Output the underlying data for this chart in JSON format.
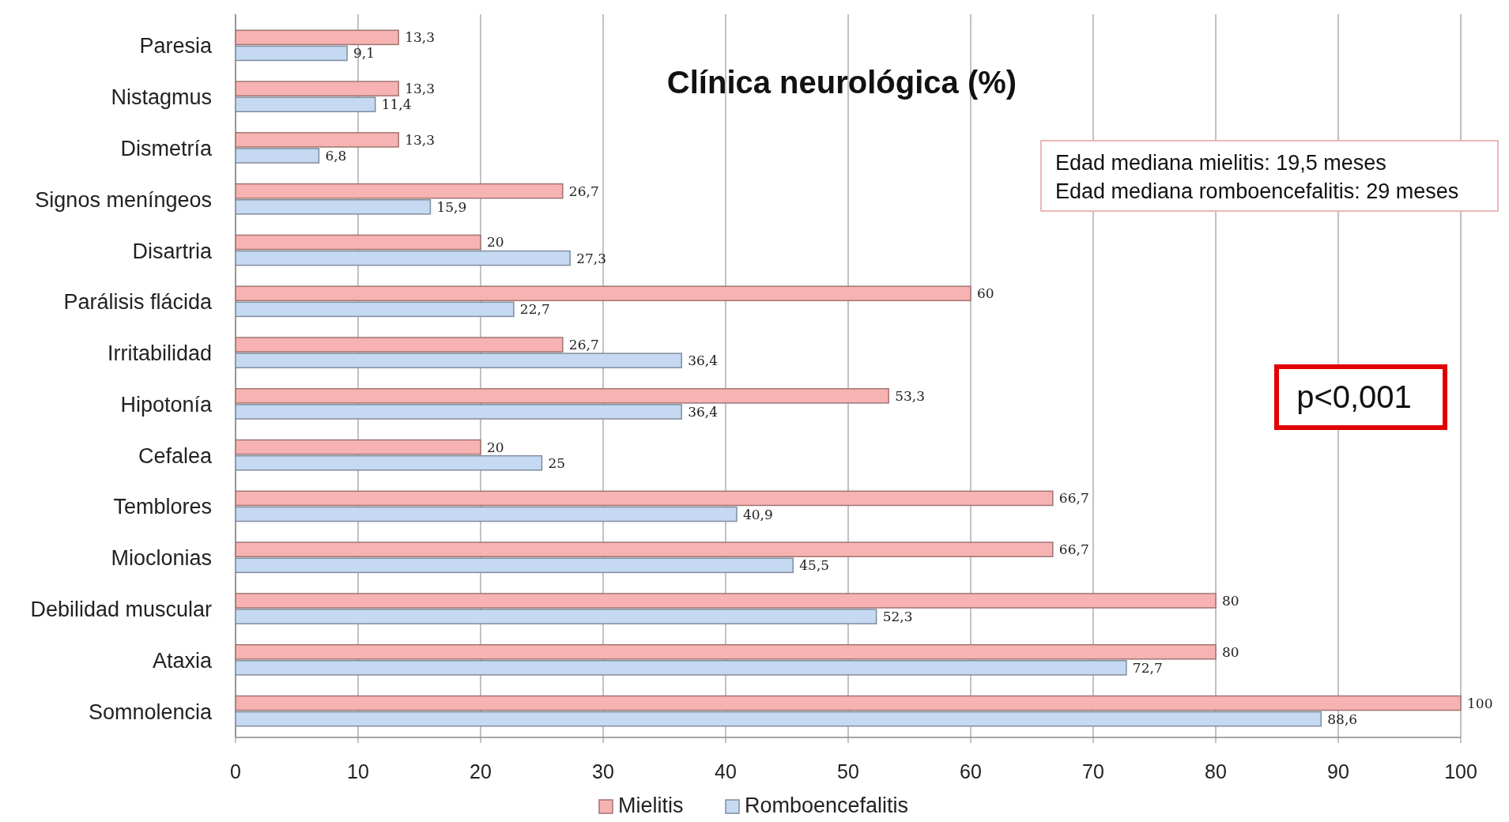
{
  "chart_data": {
    "type": "bar",
    "orientation": "horizontal",
    "title": "Clínica neurológica (%)",
    "categories": [
      "Paresia",
      "Nistagmus",
      "Dismetría",
      "Signos meníngeos",
      "Disartria",
      "Parálisis flácida",
      "Irritabilidad",
      "Hipotonía",
      "Cefalea",
      "Temblores",
      "Mioclonias",
      "Debilidad muscular",
      "Ataxia",
      "Somnolencia"
    ],
    "series": [
      {
        "name": "Mielitis",
        "color": "#f7b2b2",
        "values": [
          13.3,
          13.3,
          13.3,
          26.7,
          20,
          60,
          26.7,
          53.3,
          20,
          66.7,
          66.7,
          80,
          80,
          100
        ],
        "value_labels": [
          "13,3",
          "13,3",
          "13,3",
          "26,7",
          "20",
          "60",
          "26,7",
          "53,3",
          "20",
          "66,7",
          "66,7",
          "80",
          "80",
          "100"
        ]
      },
      {
        "name": "Romboencefalitis",
        "color": "#c5d9f3",
        "values": [
          9.1,
          11.4,
          6.8,
          15.9,
          27.3,
          22.7,
          36.4,
          36.4,
          25,
          40.9,
          45.5,
          52.3,
          72.7,
          88.6
        ],
        "value_labels": [
          "9,1",
          "11,4",
          "6,8",
          "15,9",
          "27,3",
          "22,7",
          "36,4",
          "36,4",
          "25",
          "40,9",
          "45,5",
          "52,3",
          "72,7",
          "88,6"
        ]
      }
    ],
    "xlim": [
      0,
      100
    ],
    "xticks": [
      0,
      10,
      20,
      30,
      40,
      50,
      60,
      70,
      80,
      90,
      100
    ],
    "grid": "x",
    "legend": "bottom",
    "annotations": [
      "Edad mediana mielitis: 19,5 meses\nEdad mediana romboencefalitis: 29 meses",
      "p<0,001"
    ]
  }
}
